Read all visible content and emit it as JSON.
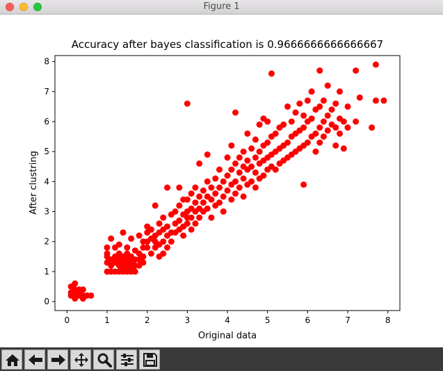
{
  "window": {
    "title": "Figure 1"
  },
  "toolbar": {
    "buttons": [
      {
        "name": "home-icon"
      },
      {
        "name": "back-arrow-icon"
      },
      {
        "name": "forward-arrow-icon"
      },
      {
        "name": "pan-icon"
      },
      {
        "name": "zoom-icon"
      },
      {
        "name": "configure-subplots-icon"
      },
      {
        "name": "save-icon"
      }
    ]
  },
  "chart_data": {
    "type": "scatter",
    "title": "Accuracy after bayes classification is 0.9666666666666667",
    "xlabel": "Original data",
    "ylabel": "After clustring",
    "xlim": [
      -0.3,
      8.3
    ],
    "ylim": [
      -0.3,
      8.2
    ],
    "xticks": [
      0,
      1,
      2,
      3,
      4,
      5,
      6,
      7,
      8
    ],
    "yticks": [
      0,
      1,
      2,
      3,
      4,
      5,
      6,
      7,
      8
    ],
    "grid": false,
    "marker_color": "#ff0000",
    "points": [
      [
        0.1,
        0.2
      ],
      [
        0.2,
        0.1
      ],
      [
        0.2,
        0.2
      ],
      [
        0.1,
        0.3
      ],
      [
        0.1,
        0.5
      ],
      [
        0.2,
        0.4
      ],
      [
        0.2,
        0.6
      ],
      [
        0.3,
        0.2
      ],
      [
        0.3,
        0.3
      ],
      [
        0.3,
        0.4
      ],
      [
        0.4,
        0.1
      ],
      [
        0.4,
        0.2
      ],
      [
        0.4,
        0.4
      ],
      [
        0.5,
        0.2
      ],
      [
        0.2,
        0.3
      ],
      [
        0.6,
        0.2
      ],
      [
        1.0,
        1.0
      ],
      [
        1.0,
        1.3
      ],
      [
        1.0,
        1.5
      ],
      [
        1.0,
        1.6
      ],
      [
        1.0,
        1.8
      ],
      [
        1.1,
        1.0
      ],
      [
        1.1,
        1.2
      ],
      [
        1.1,
        1.4
      ],
      [
        1.1,
        2.1
      ],
      [
        1.2,
        1.0
      ],
      [
        1.2,
        1.3
      ],
      [
        1.2,
        1.5
      ],
      [
        1.2,
        1.8
      ],
      [
        1.3,
        1.0
      ],
      [
        1.3,
        1.2
      ],
      [
        1.3,
        1.4
      ],
      [
        1.3,
        1.6
      ],
      [
        1.3,
        1.9
      ],
      [
        1.4,
        1.0
      ],
      [
        1.4,
        1.1
      ],
      [
        1.4,
        1.3
      ],
      [
        1.4,
        1.5
      ],
      [
        1.4,
        2.3
      ],
      [
        1.5,
        1.0
      ],
      [
        1.5,
        1.2
      ],
      [
        1.5,
        1.4
      ],
      [
        1.5,
        1.6
      ],
      [
        1.5,
        1.8
      ],
      [
        1.6,
        1.0
      ],
      [
        1.6,
        1.1
      ],
      [
        1.6,
        1.3
      ],
      [
        1.6,
        1.5
      ],
      [
        1.6,
        2.1
      ],
      [
        1.7,
        1.0
      ],
      [
        1.7,
        1.2
      ],
      [
        1.7,
        1.4
      ],
      [
        1.7,
        1.7
      ],
      [
        1.8,
        1.2
      ],
      [
        1.8,
        1.4
      ],
      [
        1.8,
        1.6
      ],
      [
        1.8,
        2.2
      ],
      [
        1.9,
        1.3
      ],
      [
        1.9,
        1.5
      ],
      [
        1.9,
        1.8
      ],
      [
        1.9,
        2.0
      ],
      [
        2.0,
        1.8
      ],
      [
        2.0,
        2.0
      ],
      [
        2.0,
        2.3
      ],
      [
        2.0,
        2.5
      ],
      [
        2.1,
        1.6
      ],
      [
        2.1,
        2.1
      ],
      [
        2.1,
        2.4
      ],
      [
        2.2,
        1.8
      ],
      [
        2.2,
        2.0
      ],
      [
        2.2,
        2.2
      ],
      [
        2.2,
        3.2
      ],
      [
        2.3,
        1.5
      ],
      [
        2.3,
        1.9
      ],
      [
        2.3,
        2.3
      ],
      [
        2.3,
        2.6
      ],
      [
        2.4,
        1.6
      ],
      [
        2.4,
        2.0
      ],
      [
        2.4,
        2.4
      ],
      [
        2.4,
        2.8
      ],
      [
        2.5,
        1.8
      ],
      [
        2.5,
        2.2
      ],
      [
        2.5,
        2.5
      ],
      [
        2.5,
        3.8
      ],
      [
        2.6,
        2.0
      ],
      [
        2.6,
        2.3
      ],
      [
        2.6,
        2.9
      ],
      [
        2.7,
        2.3
      ],
      [
        2.7,
        2.6
      ],
      [
        2.7,
        3.0
      ],
      [
        2.8,
        2.4
      ],
      [
        2.8,
        2.7
      ],
      [
        2.8,
        3.2
      ],
      [
        2.8,
        3.8
      ],
      [
        2.9,
        2.2
      ],
      [
        2.9,
        2.5
      ],
      [
        2.9,
        2.9
      ],
      [
        2.9,
        3.4
      ],
      [
        3.0,
        2.6
      ],
      [
        3.0,
        2.8
      ],
      [
        3.0,
        3.0
      ],
      [
        3.0,
        3.4
      ],
      [
        3.0,
        6.6
      ],
      [
        3.1,
        2.4
      ],
      [
        3.1,
        2.8
      ],
      [
        3.1,
        3.1
      ],
      [
        3.1,
        3.6
      ],
      [
        3.2,
        2.6
      ],
      [
        3.2,
        3.0
      ],
      [
        3.2,
        3.3
      ],
      [
        3.2,
        3.8
      ],
      [
        3.3,
        2.8
      ],
      [
        3.3,
        3.1
      ],
      [
        3.3,
        3.5
      ],
      [
        3.3,
        4.6
      ],
      [
        3.4,
        3.0
      ],
      [
        3.4,
        3.3
      ],
      [
        3.4,
        3.7
      ],
      [
        3.5,
        3.1
      ],
      [
        3.5,
        3.5
      ],
      [
        3.5,
        4.0
      ],
      [
        3.5,
        4.9
      ],
      [
        3.6,
        2.8
      ],
      [
        3.6,
        3.4
      ],
      [
        3.6,
        3.8
      ],
      [
        3.7,
        3.2
      ],
      [
        3.7,
        3.6
      ],
      [
        3.7,
        4.1
      ],
      [
        3.8,
        3.3
      ],
      [
        3.8,
        3.8
      ],
      [
        3.8,
        4.4
      ],
      [
        3.9,
        3.0
      ],
      [
        3.9,
        3.5
      ],
      [
        3.9,
        4.0
      ],
      [
        4.0,
        3.7
      ],
      [
        4.0,
        4.2
      ],
      [
        4.0,
        4.8
      ],
      [
        4.1,
        3.4
      ],
      [
        4.1,
        3.9
      ],
      [
        4.1,
        4.4
      ],
      [
        4.1,
        5.2
      ],
      [
        4.2,
        3.6
      ],
      [
        4.2,
        4.0
      ],
      [
        4.2,
        4.6
      ],
      [
        4.2,
        6.3
      ],
      [
        4.3,
        3.8
      ],
      [
        4.3,
        4.3
      ],
      [
        4.3,
        4.8
      ],
      [
        4.4,
        3.5
      ],
      [
        4.4,
        4.1
      ],
      [
        4.4,
        4.5
      ],
      [
        4.4,
        5.0
      ],
      [
        4.5,
        3.9
      ],
      [
        4.5,
        4.4
      ],
      [
        4.5,
        4.7
      ],
      [
        4.5,
        5.6
      ],
      [
        4.6,
        4.0
      ],
      [
        4.6,
        4.5
      ],
      [
        4.6,
        5.1
      ],
      [
        4.7,
        3.8
      ],
      [
        4.7,
        4.3
      ],
      [
        4.7,
        4.8
      ],
      [
        4.7,
        5.4
      ],
      [
        4.8,
        4.1
      ],
      [
        4.8,
        4.6
      ],
      [
        4.8,
        5.0
      ],
      [
        4.8,
        5.9
      ],
      [
        4.9,
        4.2
      ],
      [
        4.9,
        4.7
      ],
      [
        4.9,
        5.2
      ],
      [
        4.9,
        6.1
      ],
      [
        5.0,
        4.4
      ],
      [
        5.0,
        4.8
      ],
      [
        5.0,
        5.3
      ],
      [
        5.0,
        6.0
      ],
      [
        5.1,
        4.5
      ],
      [
        5.1,
        4.9
      ],
      [
        5.1,
        5.5
      ],
      [
        5.1,
        7.6
      ],
      [
        5.2,
        4.4
      ],
      [
        5.2,
        5.0
      ],
      [
        5.2,
        5.6
      ],
      [
        5.3,
        4.6
      ],
      [
        5.3,
        5.1
      ],
      [
        5.3,
        5.8
      ],
      [
        5.4,
        4.7
      ],
      [
        5.4,
        5.2
      ],
      [
        5.4,
        5.9
      ],
      [
        5.5,
        4.8
      ],
      [
        5.5,
        5.3
      ],
      [
        5.5,
        6.5
      ],
      [
        5.6,
        4.9
      ],
      [
        5.6,
        5.5
      ],
      [
        5.6,
        6.0
      ],
      [
        5.7,
        5.0
      ],
      [
        5.7,
        5.6
      ],
      [
        5.7,
        6.3
      ],
      [
        5.8,
        5.1
      ],
      [
        5.8,
        5.7
      ],
      [
        5.8,
        6.6
      ],
      [
        5.9,
        5.2
      ],
      [
        5.9,
        5.8
      ],
      [
        5.9,
        3.9
      ],
      [
        5.9,
        6.2
      ],
      [
        6.0,
        5.3
      ],
      [
        6.0,
        6.0
      ],
      [
        6.0,
        6.7
      ],
      [
        6.1,
        5.5
      ],
      [
        6.1,
        6.1
      ],
      [
        6.1,
        7.0
      ],
      [
        6.2,
        5.0
      ],
      [
        6.2,
        5.6
      ],
      [
        6.2,
        6.4
      ],
      [
        6.3,
        5.3
      ],
      [
        6.3,
        5.8
      ],
      [
        6.3,
        6.5
      ],
      [
        6.3,
        7.7
      ],
      [
        6.4,
        5.5
      ],
      [
        6.4,
        6.0
      ],
      [
        6.4,
        6.7
      ],
      [
        6.5,
        5.7
      ],
      [
        6.5,
        6.2
      ],
      [
        6.5,
        7.2
      ],
      [
        6.6,
        5.9
      ],
      [
        6.6,
        6.4
      ],
      [
        6.7,
        5.2
      ],
      [
        6.7,
        5.8
      ],
      [
        6.7,
        6.6
      ],
      [
        6.8,
        5.6
      ],
      [
        6.8,
        6.1
      ],
      [
        6.8,
        7.0
      ],
      [
        6.9,
        5.1
      ],
      [
        6.9,
        6.0
      ],
      [
        7.0,
        5.8
      ],
      [
        7.0,
        6.5
      ],
      [
        7.2,
        6.0
      ],
      [
        7.2,
        7.7
      ],
      [
        7.3,
        6.8
      ],
      [
        7.6,
        5.8
      ],
      [
        7.7,
        6.7
      ],
      [
        7.7,
        7.9
      ],
      [
        7.9,
        6.7
      ]
    ]
  }
}
